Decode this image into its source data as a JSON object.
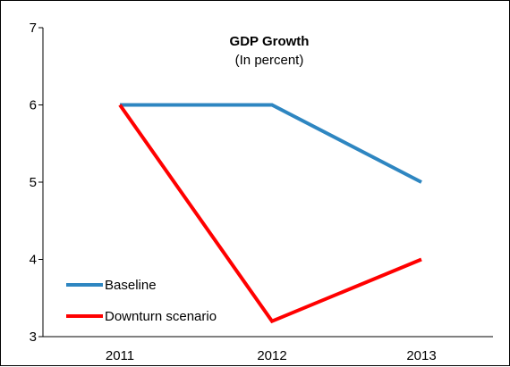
{
  "chart_data": {
    "type": "line",
    "title": "GDP Growth",
    "subtitle": "(In percent)",
    "categories": [
      "2011",
      "2012",
      "2013"
    ],
    "series": [
      {
        "name": "Baseline",
        "values": [
          6,
          6,
          5
        ],
        "color": "#2E86C1"
      },
      {
        "name": "Downturn scenario",
        "values": [
          6,
          3.2,
          4
        ],
        "color": "#FF0000"
      }
    ],
    "ylim": [
      3,
      7
    ],
    "yticks": [
      3,
      4,
      5,
      6,
      7
    ],
    "grid": false,
    "legend_position": "bottom-left"
  }
}
